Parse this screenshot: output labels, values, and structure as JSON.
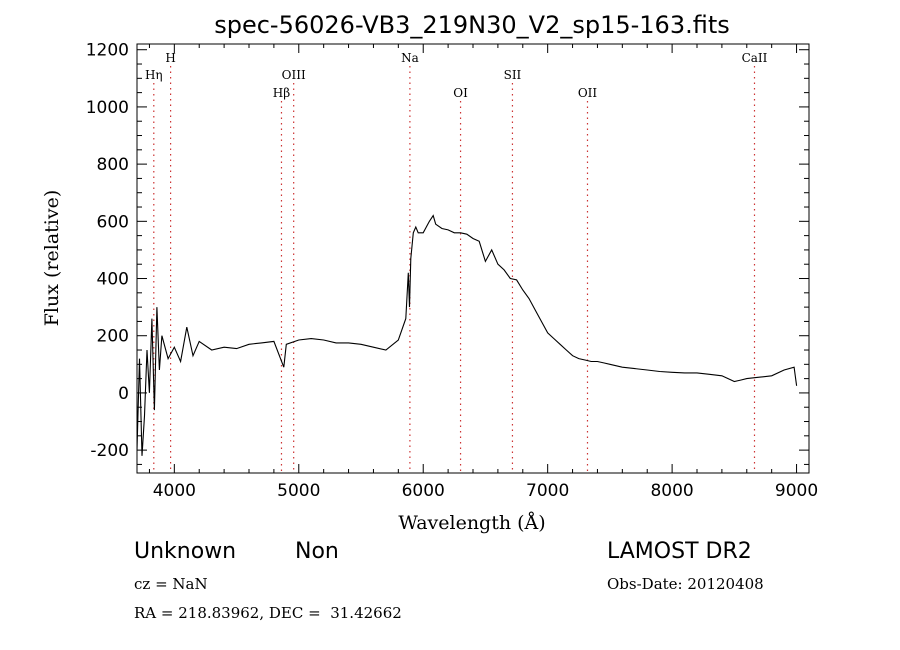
{
  "chart_data": {
    "type": "line",
    "title": "spec-56026-VB3_219N30_V2_sp15-163.fits",
    "xlabel": "Wavelength (Å)",
    "ylabel": "Flux (relative)",
    "xlim": [
      3700,
      9100
    ],
    "ylim": [
      -280,
      1220
    ],
    "xticks": [
      4000,
      5000,
      6000,
      7000,
      8000,
      9000
    ],
    "yticks": [
      -200,
      0,
      200,
      400,
      600,
      800,
      1000,
      1200
    ],
    "grid": false,
    "line_color": "#000000",
    "marker_color": "#cc3333",
    "series": [
      {
        "values_x": [
          3700,
          3720,
          3740,
          3760,
          3780,
          3800,
          3820,
          3840,
          3860,
          3880,
          3900,
          3950,
          4000,
          4050,
          4100,
          4150,
          4200,
          4300,
          4400,
          4500,
          4600,
          4700,
          4800,
          4880,
          4900,
          5000,
          5100,
          5200,
          5300,
          5400,
          5500,
          5600,
          5700,
          5800,
          5860,
          5880,
          5890,
          5900,
          5920,
          5940,
          5960,
          6000,
          6050,
          6080,
          6100,
          6150,
          6200,
          6250,
          6300,
          6350,
          6400,
          6450,
          6500,
          6550,
          6600,
          6650,
          6700,
          6750,
          6800,
          6850,
          6900,
          6950,
          7000,
          7050,
          7100,
          7150,
          7200,
          7250,
          7300,
          7350,
          7400,
          7450,
          7500,
          7600,
          7700,
          7800,
          7900,
          8000,
          8100,
          8200,
          8300,
          8400,
          8450,
          8500,
          8550,
          8600,
          8700,
          8800,
          8900,
          8980,
          9000
        ],
        "values_y": [
          -200,
          120,
          -220,
          -80,
          150,
          0,
          260,
          -60,
          300,
          80,
          200,
          120,
          160,
          110,
          230,
          130,
          180,
          150,
          160,
          155,
          170,
          175,
          180,
          90,
          170,
          185,
          190,
          185,
          175,
          175,
          170,
          160,
          150,
          185,
          260,
          420,
          300,
          470,
          560,
          580,
          560,
          560,
          600,
          620,
          590,
          575,
          570,
          560,
          560,
          555,
          540,
          530,
          460,
          500,
          450,
          430,
          400,
          395,
          360,
          330,
          290,
          250,
          210,
          190,
          170,
          150,
          130,
          120,
          115,
          110,
          110,
          105,
          100,
          90,
          85,
          80,
          75,
          72,
          70,
          70,
          65,
          60,
          50,
          40,
          45,
          50,
          55,
          60,
          80,
          90,
          25
        ]
      }
    ],
    "lines": [
      {
        "label": "Hη",
        "x": 3835,
        "tier": 2
      },
      {
        "label": "H",
        "x": 3970,
        "tier": 1
      },
      {
        "label": "Hβ",
        "x": 4861,
        "tier": 3
      },
      {
        "label": "OIII",
        "x": 4959,
        "tier": 2
      },
      {
        "label": "Na",
        "x": 5893,
        "tier": 1
      },
      {
        "label": "OI",
        "x": 6300,
        "tier": 3
      },
      {
        "label": "SII",
        "x": 6717,
        "tier": 2
      },
      {
        "label": "OII",
        "x": 7320,
        "tier": 3
      },
      {
        "label": "CaII",
        "x": 8662,
        "tier": 1
      }
    ]
  },
  "info": {
    "class": "Unknown",
    "subclass": "Non",
    "survey": "LAMOST DR2",
    "cz": "cz = NaN",
    "obs_date": "Obs-Date: 20120408",
    "coords": "RA = 218.83962, DEC =  31.42662"
  }
}
